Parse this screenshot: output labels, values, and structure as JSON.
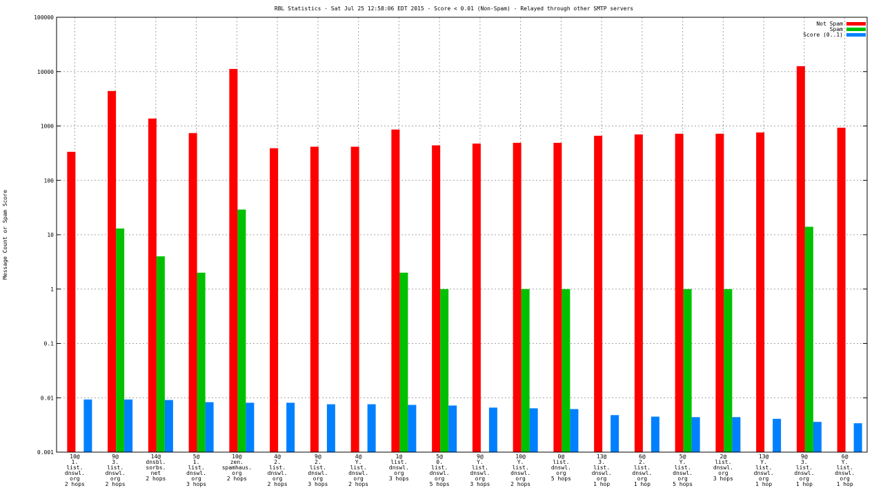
{
  "chart_data": {
    "type": "bar",
    "title": "RBL Statistics - Sat Jul 25 12:58:06 EDT 2015 - Score < 0.01 (Non-Spam) - Relayed through other SMTP servers",
    "xlabel": "",
    "ylabel": "Message Count or Spam Score",
    "yscale": "log",
    "ylim": [
      0.001,
      100000
    ],
    "yticks": [
      "0.001",
      "0.01",
      "0.1",
      "1",
      "10",
      "100",
      "1000",
      "10000",
      "100000"
    ],
    "grid": true,
    "legend_position": "top-right",
    "categories": [
      [
        "10@",
        "1.",
        "list.",
        "dnswl.",
        "org",
        "2 hops"
      ],
      [
        "9@",
        "3.",
        "list.",
        "dnswl.",
        "org",
        "2 hops"
      ],
      [
        "14@",
        "dnsbl.",
        "sorbs.",
        "net",
        "2 hops"
      ],
      [
        "5@",
        "1.",
        "list.",
        "dnswl.",
        "org",
        "3 hops"
      ],
      [
        "10@",
        "zen.",
        "spamhaus.",
        "org",
        "2 hops"
      ],
      [
        "4@",
        "2.",
        "list.",
        "dnswl.",
        "org",
        "2 hops"
      ],
      [
        "9@",
        "2.",
        "list.",
        "dnswl.",
        "org",
        "3 hops"
      ],
      [
        "4@",
        "Y.",
        "list.",
        "dnswl.",
        "org",
        "2 hops"
      ],
      [
        "1@",
        "list.",
        "dnswl.",
        "org",
        "3 hops"
      ],
      [
        "5@",
        "0.",
        "list.",
        "dnswl.",
        "org",
        "5 hops"
      ],
      [
        "9@",
        "Y.",
        "list.",
        "dnswl.",
        "org",
        "3 hops"
      ],
      [
        "10@",
        "Y.",
        "list.",
        "dnswl.",
        "org",
        "2 hops"
      ],
      [
        "0@",
        "list.",
        "dnswl.",
        "org",
        "5 hops"
      ],
      [
        "13@",
        "3.",
        "list.",
        "dnswl.",
        "org",
        "1 hop"
      ],
      [
        "6@",
        "2.",
        "list.",
        "dnswl.",
        "org",
        "1 hop"
      ],
      [
        "5@",
        "Y.",
        "list.",
        "dnswl.",
        "org",
        "5 hops"
      ],
      [
        "2@",
        "list.",
        "dnswl.",
        "org",
        "3 hops"
      ],
      [
        "13@",
        "Y.",
        "list.",
        "dnswl.",
        "org",
        "1 hop"
      ],
      [
        "9@",
        "3.",
        "list.",
        "dnswl.",
        "org",
        "1 hop"
      ],
      [
        "6@",
        "Y.",
        "list.",
        "dnswl.",
        "org",
        "1 hop"
      ]
    ],
    "series": [
      {
        "name": "Not Spam",
        "color": "#ff0000",
        "values": [
          335,
          4400,
          1370,
          740,
          11200,
          390,
          415,
          415,
          860,
          440,
          475,
          490,
          490,
          660,
          700,
          720,
          720,
          760,
          12600,
          930
        ]
      },
      {
        "name": "Spam",
        "color": "#00c000",
        "values": [
          null,
          13,
          4,
          2,
          29,
          null,
          null,
          null,
          2,
          1,
          null,
          1,
          1,
          null,
          null,
          1,
          1,
          null,
          14,
          null
        ]
      },
      {
        "name": "Score (0..1)",
        "color": "#0080ff",
        "values": [
          0.0093,
          0.0093,
          0.0091,
          0.0083,
          0.0081,
          0.0081,
          0.0076,
          0.0076,
          0.0074,
          0.0072,
          0.0066,
          0.0064,
          0.0062,
          0.0048,
          0.0045,
          0.0044,
          0.0044,
          0.0041,
          0.0036,
          0.0034
        ]
      }
    ]
  }
}
